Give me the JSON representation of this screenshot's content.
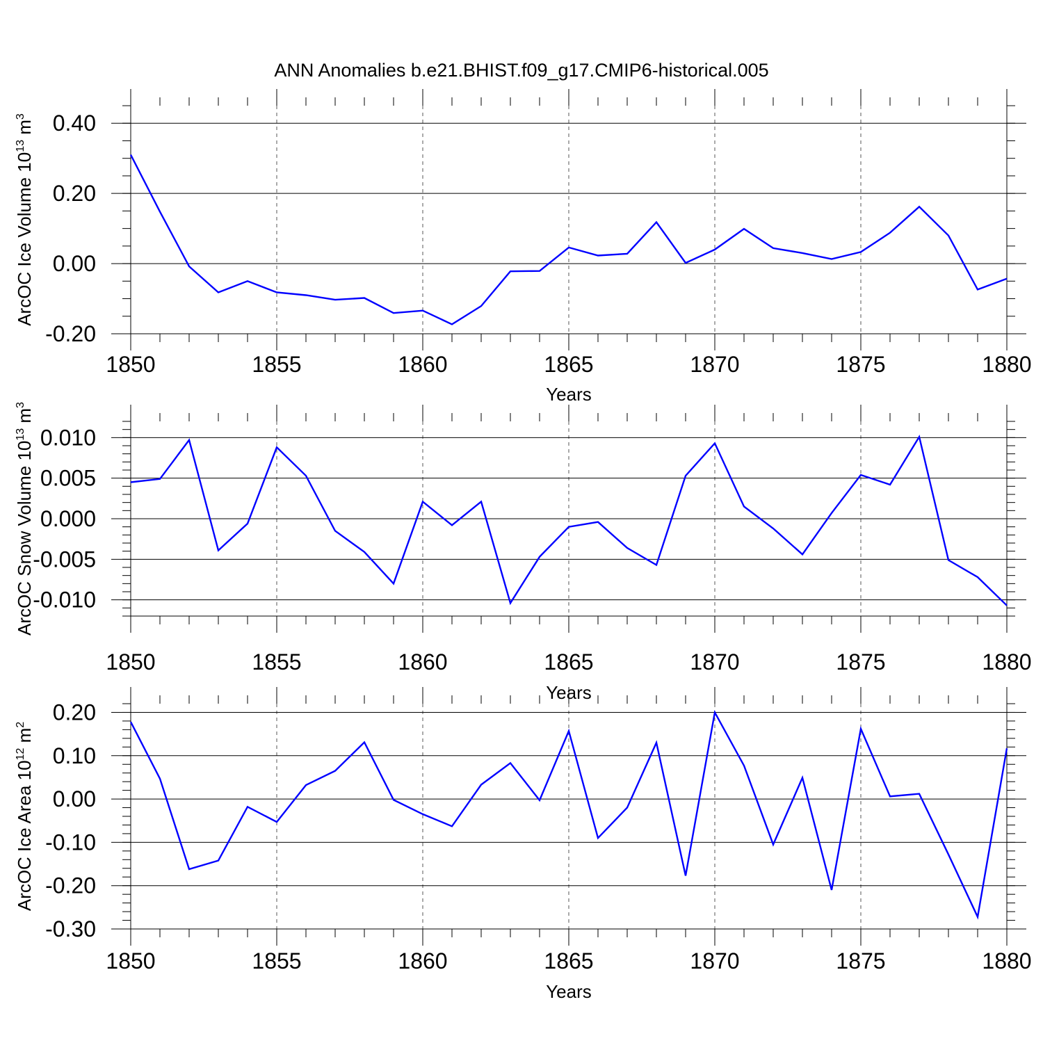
{
  "title": "ANN Anomalies b.e21.BHIST.f09_g17.CMIP6-historical.005",
  "colors": {
    "series": "#0000ff",
    "axes": "#000000",
    "grid": "#555555"
  },
  "chart_data": [
    {
      "type": "line",
      "xlabel": "Years",
      "ylabel": {
        "main": "ArcOC Ice Volume 10",
        "exp": "13",
        "unit": " m",
        "unit_exp": "3"
      },
      "xlim": [
        1850,
        1880
      ],
      "ylim": [
        -0.2,
        0.45
      ],
      "x_ticks": [
        "1850",
        "1855",
        "1860",
        "1865",
        "1870",
        "1875",
        "1880"
      ],
      "y_ticks": [
        {
          "value": 0.4,
          "label": "0.40"
        },
        {
          "value": 0.2,
          "label": "0.20"
        },
        {
          "value": 0.0,
          "label": "0.00"
        },
        {
          "value": -0.2,
          "label": "-0.20"
        }
      ],
      "y_minor_step": 0.05,
      "grid": "vertical dashed at major x ticks",
      "x": [
        1850,
        1851,
        1852,
        1853,
        1854,
        1855,
        1856,
        1857,
        1858,
        1859,
        1860,
        1861,
        1862,
        1863,
        1864,
        1865,
        1866,
        1867,
        1868,
        1869,
        1870,
        1871,
        1872,
        1873,
        1874,
        1875,
        1876,
        1877,
        1878,
        1879,
        1880
      ],
      "values": [
        0.31,
        0.148,
        -0.008,
        -0.082,
        -0.05,
        -0.082,
        -0.09,
        -0.103,
        -0.098,
        -0.141,
        -0.134,
        -0.173,
        -0.121,
        -0.022,
        -0.021,
        0.046,
        0.023,
        0.028,
        0.118,
        0.002,
        0.04,
        0.099,
        0.044,
        0.03,
        0.013,
        0.033,
        0.088,
        0.162,
        0.08,
        -0.074,
        -0.043
      ]
    },
    {
      "type": "line",
      "xlabel": "Years",
      "ylabel": {
        "main": "ArcOC Snow Volume 10",
        "exp": "13",
        "unit": " m",
        "unit_exp": "3"
      },
      "xlim": [
        1850,
        1880
      ],
      "ylim": [
        -0.012,
        0.012
      ],
      "x_ticks": [
        "1850",
        "1855",
        "1860",
        "1865",
        "1870",
        "1875",
        "1880"
      ],
      "y_ticks": [
        {
          "value": 0.01,
          "label": "0.010"
        },
        {
          "value": 0.005,
          "label": "0.005"
        },
        {
          "value": 0.0,
          "label": "0.000"
        },
        {
          "value": -0.005,
          "label": "-0.005"
        },
        {
          "value": -0.01,
          "label": "-0.010"
        }
      ],
      "y_minor_step": 0.001,
      "grid": "vertical dashed at major x ticks",
      "x": [
        1850,
        1851,
        1852,
        1853,
        1854,
        1855,
        1856,
        1857,
        1858,
        1859,
        1860,
        1861,
        1862,
        1863,
        1864,
        1865,
        1866,
        1867,
        1868,
        1869,
        1870,
        1871,
        1872,
        1873,
        1874,
        1875,
        1876,
        1877,
        1878,
        1879,
        1880
      ],
      "values": [
        0.0045,
        0.0049,
        0.0097,
        -0.0039,
        -0.0006,
        0.0088,
        0.0053,
        -0.0015,
        -0.0041,
        -0.008,
        0.0021,
        -0.0008,
        0.0021,
        -0.0104,
        -0.0047,
        -0.001,
        -0.0004,
        -0.0036,
        -0.0057,
        0.0053,
        0.0093,
        0.0015,
        -0.0012,
        -0.0044,
        0.0007,
        0.0054,
        0.0042,
        0.0101,
        -0.0051,
        -0.0072,
        -0.0107
      ]
    },
    {
      "type": "line",
      "xlabel": "Years",
      "ylabel": {
        "main": "ArcOC Ice Area 10",
        "exp": "12",
        "unit": " m",
        "unit_exp": "2"
      },
      "xlim": [
        1850,
        1880
      ],
      "ylim": [
        -0.3,
        0.22
      ],
      "x_ticks": [
        "1850",
        "1855",
        "1860",
        "1865",
        "1870",
        "1875",
        "1880"
      ],
      "y_ticks": [
        {
          "value": 0.2,
          "label": "0.20"
        },
        {
          "value": 0.1,
          "label": "0.10"
        },
        {
          "value": 0.0,
          "label": "0.00"
        },
        {
          "value": -0.1,
          "label": "-0.10"
        },
        {
          "value": -0.2,
          "label": "-0.20"
        },
        {
          "value": -0.3,
          "label": "-0.30"
        }
      ],
      "y_minor_step": 0.02,
      "grid": "vertical dashed at major x ticks",
      "x": [
        1850,
        1851,
        1852,
        1853,
        1854,
        1855,
        1856,
        1857,
        1858,
        1859,
        1860,
        1861,
        1862,
        1863,
        1864,
        1865,
        1866,
        1867,
        1868,
        1869,
        1870,
        1871,
        1872,
        1873,
        1874,
        1875,
        1876,
        1877,
        1878,
        1879,
        1880
      ],
      "values": [
        0.178,
        0.047,
        -0.162,
        -0.142,
        -0.018,
        -0.053,
        0.032,
        0.065,
        0.131,
        -0.002,
        -0.035,
        -0.063,
        0.033,
        0.083,
        -0.003,
        0.157,
        -0.09,
        -0.02,
        0.13,
        -0.177,
        0.2,
        0.077,
        -0.105,
        0.049,
        -0.21,
        0.162,
        0.006,
        0.012,
        -0.128,
        -0.272,
        0.117
      ]
    }
  ]
}
